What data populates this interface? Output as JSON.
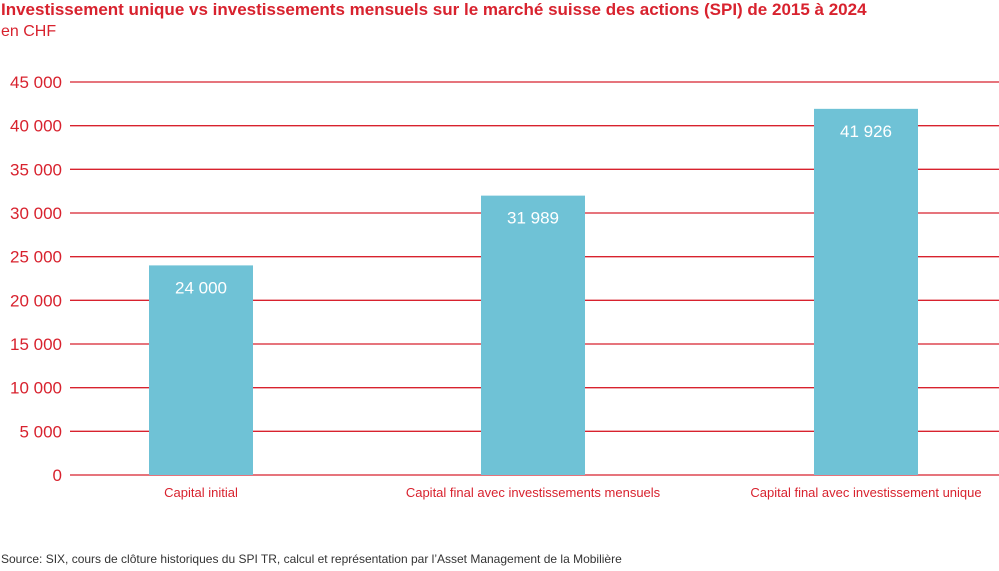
{
  "header": {
    "title": "Investissement unique vs investissements mensuels sur le marché suisse des actions (SPI) de 2015 à 2024",
    "subtitle": "en CHF"
  },
  "footer": {
    "source": "Source: SIX, cours de clôture historiques du SPI TR, calcul et représentation par l’Asset Management de la Mobilière"
  },
  "colors": {
    "accent": "#d8222e",
    "bar": "#6fc2d6",
    "bar_label": "#ffffff"
  },
  "chart_data": {
    "type": "bar",
    "title": "Investissement unique vs investissements mensuels sur le marché suisse des actions (SPI) de 2015 à 2024",
    "xlabel": "",
    "ylabel": "en CHF",
    "categories": [
      "Capital initial",
      "Capital final avec investissements mensuels",
      "Capital final avec investissement unique"
    ],
    "values": [
      24000,
      31989,
      41926
    ],
    "value_labels": [
      "24 000",
      "31 989",
      "41 926"
    ],
    "ylim": [
      0,
      45000
    ],
    "yticks": [
      0,
      5000,
      10000,
      15000,
      20000,
      25000,
      30000,
      35000,
      40000,
      45000
    ],
    "ytick_labels": [
      "0",
      "5 000",
      "10 000",
      "15 000",
      "20 000",
      "25 000",
      "30 000",
      "35 000",
      "40 000",
      "45 000"
    ],
    "grid": true,
    "legend": "none"
  }
}
